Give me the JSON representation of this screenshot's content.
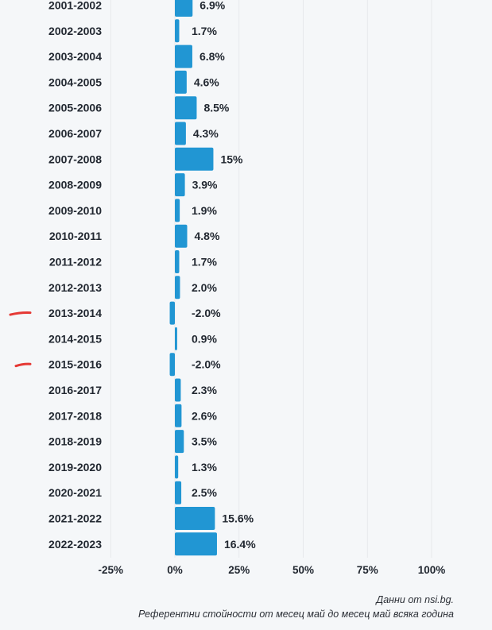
{
  "chart_data": {
    "type": "bar",
    "orientation": "horizontal",
    "categories": [
      "2001-2002",
      "2002-2003",
      "2003-2004",
      "2004-2005",
      "2005-2006",
      "2006-2007",
      "2007-2008",
      "2008-2009",
      "2009-2010",
      "2010-2011",
      "2011-2012",
      "2012-2013",
      "2013-2014",
      "2014-2015",
      "2015-2016",
      "2016-2017",
      "2017-2018",
      "2018-2019",
      "2019-2020",
      "2020-2021",
      "2021-2022",
      "2022-2023"
    ],
    "values": [
      6.9,
      1.7,
      6.8,
      4.6,
      8.5,
      4.3,
      15,
      3.9,
      1.9,
      4.8,
      1.7,
      2.0,
      -2.0,
      0.9,
      -2.0,
      2.3,
      2.6,
      3.5,
      1.3,
      2.5,
      15.6,
      16.4
    ],
    "data_labels": [
      "6.9%",
      "1.7%",
      "6.8%",
      "4.6%",
      "8.5%",
      "4.3%",
      "15%",
      "3.9%",
      "1.9%",
      "4.8%",
      "1.7%",
      "2.0%",
      "-2.0%",
      "0.9%",
      "-2.0%",
      "2.3%",
      "2.6%",
      "3.5%",
      "1.3%",
      "2.5%",
      "15.6%",
      "16.4%"
    ],
    "xticks": [
      -25,
      0,
      25,
      50,
      75,
      100
    ],
    "xtick_labels": [
      "-25%",
      "0%",
      "25%",
      "50%",
      "75%",
      "100%"
    ],
    "xlim": [
      -25,
      100
    ],
    "grid": true,
    "bar_color": "#2196d3",
    "marked_categories": [
      "2013-2014",
      "2015-2016"
    ],
    "marker_color": "#e53935",
    "title": "",
    "xlabel": "",
    "ylabel": ""
  },
  "footer": {
    "source": "Данни от nsi.bg.",
    "note": "Референтни стойности от месец май до месец май всяка година"
  }
}
